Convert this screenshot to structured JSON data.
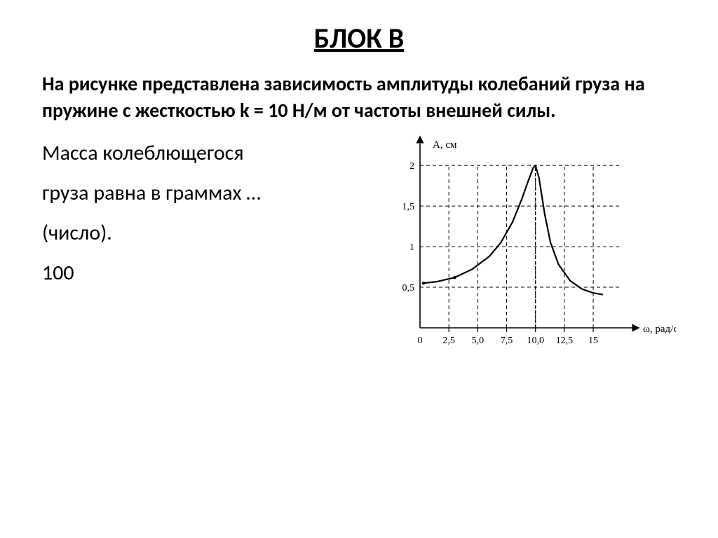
{
  "title": "БЛОК В",
  "title_fontsize": 40,
  "problem": {
    "text": "На рисунке представлена зависимость амплитуды колебаний груза на пружине с жесткостью k = 10 Н/м от частоты внешней силы.",
    "fontsize": 28
  },
  "question": {
    "line1": "Масса колеблющегося",
    "line2": "груза равна в граммах …",
    "line3": "(число).",
    "answer": " 100",
    "fontsize": 30
  },
  "chart": {
    "type": "line",
    "ylabel": "А, см",
    "xlabel": "ω, рад/с",
    "label_fontsize": 15,
    "tick_fontsize": 14,
    "xlim": [
      0,
      17
    ],
    "ylim": [
      0,
      2.2
    ],
    "xticks": [
      0,
      2.5,
      5.0,
      7.5,
      10.0,
      12.5,
      15
    ],
    "xtick_labels": [
      "0",
      "2,5",
      "5,0",
      "7,5",
      "10,0",
      "12,5",
      "15"
    ],
    "yticks": [
      0.5,
      1,
      1.5,
      2
    ],
    "ytick_labels": [
      "0,5",
      "1",
      "1,5",
      "2"
    ],
    "grid_color": "#000000",
    "grid_dash": "5,4",
    "axis_color": "#000000",
    "line_color": "#000000",
    "line_width": 2.2,
    "background_color": "#ffffff",
    "peak_x": 10.0,
    "points": [
      {
        "x": 0.3,
        "y": 0.55
      },
      {
        "x": 1.5,
        "y": 0.57
      },
      {
        "x": 3.0,
        "y": 0.62
      },
      {
        "x": 4.5,
        "y": 0.72
      },
      {
        "x": 6.0,
        "y": 0.88
      },
      {
        "x": 7.0,
        "y": 1.05
      },
      {
        "x": 8.0,
        "y": 1.3
      },
      {
        "x": 8.8,
        "y": 1.58
      },
      {
        "x": 9.4,
        "y": 1.82
      },
      {
        "x": 9.8,
        "y": 1.97
      },
      {
        "x": 10.0,
        "y": 2.0
      },
      {
        "x": 10.3,
        "y": 1.85
      },
      {
        "x": 10.8,
        "y": 1.4
      },
      {
        "x": 11.3,
        "y": 1.05
      },
      {
        "x": 12.0,
        "y": 0.78
      },
      {
        "x": 13.0,
        "y": 0.58
      },
      {
        "x": 14.0,
        "y": 0.48
      },
      {
        "x": 15.0,
        "y": 0.43
      },
      {
        "x": 15.8,
        "y": 0.41
      }
    ]
  }
}
